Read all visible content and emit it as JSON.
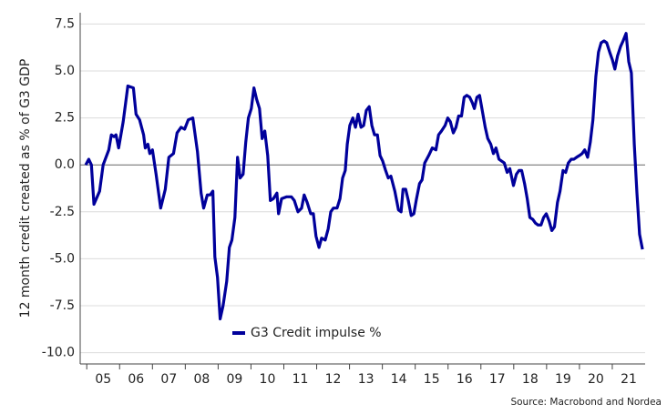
{
  "chart_data": {
    "type": "line",
    "y_label": "12 month credit created as % of G3 GDP",
    "source": "Source: Macrobond and Nordea",
    "x": [
      2004.97,
      2005.06,
      2005.14,
      2005.22,
      2005.39,
      2005.5,
      2005.67,
      2005.75,
      2005.83,
      2005.89,
      2005.97,
      2006.11,
      2006.25,
      2006.42,
      2006.5,
      2006.61,
      2006.73,
      2006.78,
      2006.86,
      2006.92,
      2007.0,
      2007.11,
      2007.25,
      2007.39,
      2007.5,
      2007.64,
      2007.75,
      2007.87,
      2007.98,
      2008.09,
      2008.23,
      2008.37,
      2008.48,
      2008.56,
      2008.67,
      2008.76,
      2008.84,
      2008.9,
      2008.98,
      2009.06,
      2009.15,
      2009.26,
      2009.34,
      2009.42,
      2009.51,
      2009.59,
      2009.67,
      2009.76,
      2009.84,
      2009.92,
      2010.01,
      2010.09,
      2010.17,
      2010.26,
      2010.34,
      2010.42,
      2010.51,
      2010.59,
      2010.68,
      2010.79,
      2010.84,
      2010.93,
      2011.09,
      2011.23,
      2011.32,
      2011.43,
      2011.54,
      2011.62,
      2011.71,
      2011.82,
      2011.9,
      2011.98,
      2012.07,
      2012.15,
      2012.26,
      2012.35,
      2012.43,
      2012.51,
      2012.62,
      2012.71,
      2012.79,
      2012.87,
      2012.93,
      2013.01,
      2013.1,
      2013.18,
      2013.26,
      2013.35,
      2013.43,
      2013.51,
      2013.6,
      2013.68,
      2013.76,
      2013.85,
      2013.93,
      2014.01,
      2014.1,
      2014.18,
      2014.26,
      2014.38,
      2014.49,
      2014.57,
      2014.63,
      2014.71,
      2014.79,
      2014.88,
      2014.96,
      2015.04,
      2015.13,
      2015.21,
      2015.29,
      2015.41,
      2015.52,
      2015.63,
      2015.71,
      2015.8,
      2015.91,
      2015.99,
      2016.07,
      2016.16,
      2016.24,
      2016.32,
      2016.41,
      2016.49,
      2016.57,
      2016.66,
      2016.74,
      2016.8,
      2016.88,
      2016.96,
      2017.05,
      2017.13,
      2017.21,
      2017.3,
      2017.38,
      2017.46,
      2017.55,
      2017.63,
      2017.71,
      2017.8,
      2017.88,
      2017.99,
      2018.08,
      2018.16,
      2018.24,
      2018.33,
      2018.41,
      2018.49,
      2018.58,
      2018.66,
      2018.74,
      2018.83,
      2018.91,
      2018.99,
      2019.08,
      2019.16,
      2019.24,
      2019.33,
      2019.41,
      2019.5,
      2019.58,
      2019.66,
      2019.75,
      2019.83,
      2019.91,
      2020.0,
      2020.08,
      2020.16,
      2020.25,
      2020.33,
      2020.41,
      2020.5,
      2020.58,
      2020.66,
      2020.75,
      2020.83,
      2020.92,
      2021.0,
      2021.08,
      2021.16,
      2021.25,
      2021.33,
      2021.42,
      2021.5,
      2021.58,
      2021.67,
      2021.75,
      2021.83,
      2021.92
    ],
    "series": [
      {
        "name": "G3 Credit impulse %",
        "color": "#00009b",
        "values": [
          0.0,
          0.3,
          0.0,
          -2.1,
          -1.4,
          0.0,
          0.8,
          1.6,
          1.5,
          1.6,
          0.9,
          2.3,
          4.2,
          4.1,
          2.7,
          2.4,
          1.6,
          0.9,
          1.1,
          0.6,
          0.8,
          -0.5,
          -2.3,
          -1.3,
          0.4,
          0.6,
          1.7,
          2.0,
          1.9,
          2.4,
          2.5,
          0.7,
          -1.5,
          -2.3,
          -1.6,
          -1.6,
          -1.4,
          -4.9,
          -6.0,
          -8.2,
          -7.5,
          -6.2,
          -4.4,
          -4.0,
          -2.8,
          0.4,
          -0.7,
          -0.5,
          1.2,
          2.5,
          3.0,
          4.1,
          3.5,
          3.0,
          1.4,
          1.8,
          0.5,
          -1.9,
          -1.8,
          -1.5,
          -2.6,
          -1.8,
          -1.7,
          -1.7,
          -1.9,
          -2.5,
          -2.3,
          -1.6,
          -2.0,
          -2.6,
          -2.6,
          -3.8,
          -4.4,
          -3.9,
          -4.0,
          -3.4,
          -2.5,
          -2.3,
          -2.3,
          -1.8,
          -0.7,
          -0.3,
          1.1,
          2.1,
          2.5,
          2.0,
          2.7,
          2.0,
          2.1,
          2.9,
          3.1,
          2.1,
          1.6,
          1.6,
          0.5,
          0.2,
          -0.3,
          -0.7,
          -0.6,
          -1.4,
          -2.4,
          -2.5,
          -1.3,
          -1.3,
          -1.9,
          -2.7,
          -2.6,
          -1.8,
          -1.0,
          -0.8,
          0.1,
          0.5,
          0.9,
          0.8,
          1.6,
          1.8,
          2.1,
          2.5,
          2.3,
          1.7,
          2.0,
          2.6,
          2.6,
          3.6,
          3.7,
          3.6,
          3.3,
          3.0,
          3.6,
          3.7,
          2.8,
          2.0,
          1.4,
          1.1,
          0.6,
          0.9,
          0.3,
          0.2,
          0.1,
          -0.4,
          -0.2,
          -1.1,
          -0.5,
          -0.3,
          -0.3,
          -1.0,
          -1.8,
          -2.8,
          -2.9,
          -3.1,
          -3.2,
          -3.2,
          -2.8,
          -2.6,
          -3.0,
          -3.5,
          -3.3,
          -2.0,
          -1.4,
          -0.3,
          -0.4,
          0.1,
          0.3,
          0.3,
          0.4,
          0.5,
          0.6,
          0.8,
          0.4,
          1.2,
          2.4,
          4.7,
          6.0,
          6.5,
          6.6,
          6.5,
          6.0,
          5.6,
          5.1,
          5.8,
          6.3,
          6.6,
          7.0,
          5.5,
          4.9,
          1.1,
          -1.5,
          -3.7,
          -4.5
        ]
      }
    ],
    "xlim": [
      2004.8,
      2022.0
    ],
    "xticks": [
      {
        "value": 2005.5,
        "label": "05"
      },
      {
        "value": 2006.5,
        "label": "06"
      },
      {
        "value": 2007.5,
        "label": "07"
      },
      {
        "value": 2008.5,
        "label": "08"
      },
      {
        "value": 2009.5,
        "label": "09"
      },
      {
        "value": 2010.5,
        "label": "10"
      },
      {
        "value": 2011.5,
        "label": "11"
      },
      {
        "value": 2012.5,
        "label": "12"
      },
      {
        "value": 2013.5,
        "label": "13"
      },
      {
        "value": 2014.5,
        "label": "14"
      },
      {
        "value": 2015.5,
        "label": "15"
      },
      {
        "value": 2016.5,
        "label": "16"
      },
      {
        "value": 2017.5,
        "label": "17"
      },
      {
        "value": 2018.5,
        "label": "18"
      },
      {
        "value": 2019.5,
        "label": "19"
      },
      {
        "value": 2020.5,
        "label": "20"
      },
      {
        "value": 2021.5,
        "label": "21"
      }
    ],
    "ylim": [
      -10.6,
      8.1
    ],
    "yticks": [
      7.5,
      {
        "value": 5,
        "label": "5.0"
      },
      2.5,
      {
        "value": 0,
        "label": "0.0"
      },
      -2.5,
      {
        "value": -5,
        "label": "-5.0"
      },
      -7.5,
      {
        "value": -10,
        "label": "-10.0"
      }
    ],
    "grid": true,
    "legend": "bottom-left"
  }
}
